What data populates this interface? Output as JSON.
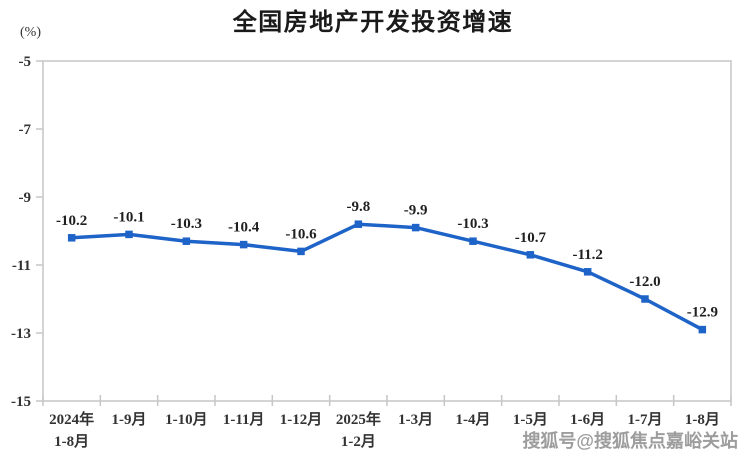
{
  "title": "全国房地产开发投资增速",
  "unit_label": "(%)",
  "watermark": "搜狐号@搜狐焦点嘉峪关站",
  "colors": {
    "title": "#1a1a1a",
    "line": "#1e63c7",
    "marker": "#1e63c7",
    "axis": "#c6c6c6",
    "point_label": "#1f1f1f",
    "tick_label": "#333333",
    "watermark": "#8c8c8c",
    "background": "#ffffff"
  },
  "chart_data": {
    "type": "line",
    "title": "全国房地产开发投资增速",
    "unit": "%",
    "xlabel": "",
    "ylabel": "(%)",
    "categories": [
      "2024年\n1-8月",
      "1-9月",
      "1-10月",
      "1-11月",
      "1-12月",
      "2025年\n1-2月",
      "1-3月",
      "1-4月",
      "1-5月",
      "1-6月",
      "1-7月",
      "1-8月"
    ],
    "values": [
      -10.2,
      -10.1,
      -10.3,
      -10.4,
      -10.6,
      -9.8,
      -9.9,
      -10.3,
      -10.7,
      -11.2,
      -12.0,
      -12.9
    ],
    "point_labels": [
      "-10.2",
      "-10.1",
      "-10.3",
      "-10.4",
      "-10.6",
      "-9.8",
      "-9.9",
      "-10.3",
      "-10.7",
      "-11.2",
      "-12.0",
      "-12.9"
    ],
    "ylim": [
      -15,
      -5
    ],
    "yticks": [
      -5,
      -7,
      -9,
      -11,
      -13,
      -15
    ],
    "grid": false,
    "legend": false,
    "marker": "square",
    "data_labels": true
  }
}
